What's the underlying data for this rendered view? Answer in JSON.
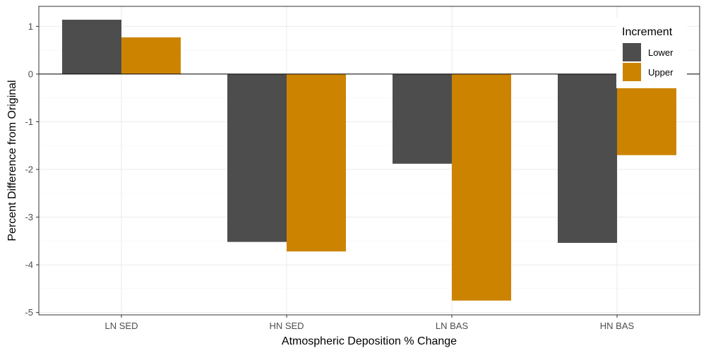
{
  "chart_data": {
    "type": "bar",
    "categories": [
      "LN SED",
      "HN SED",
      "LN BAS",
      "HN BAS"
    ],
    "series": [
      {
        "name": "Lower",
        "color": "#4d4d4d",
        "values": [
          1.14,
          -3.52,
          -1.88,
          -3.54
        ]
      },
      {
        "name": "Upper",
        "color": "#cc8400",
        "values": [
          0.77,
          -3.72,
          -4.75,
          -1.7
        ]
      }
    ],
    "title": "",
    "xlabel": "Atmospheric Deposition % Change",
    "ylabel": "Percent Difference from Original",
    "ylim": [
      -5.05,
      1.42
    ],
    "yticks": [
      1,
      0,
      -1,
      -2,
      -3,
      -4,
      -5
    ],
    "grid": true,
    "zero_line": true,
    "legend": {
      "title": "Increment",
      "position": "top-right"
    }
  }
}
